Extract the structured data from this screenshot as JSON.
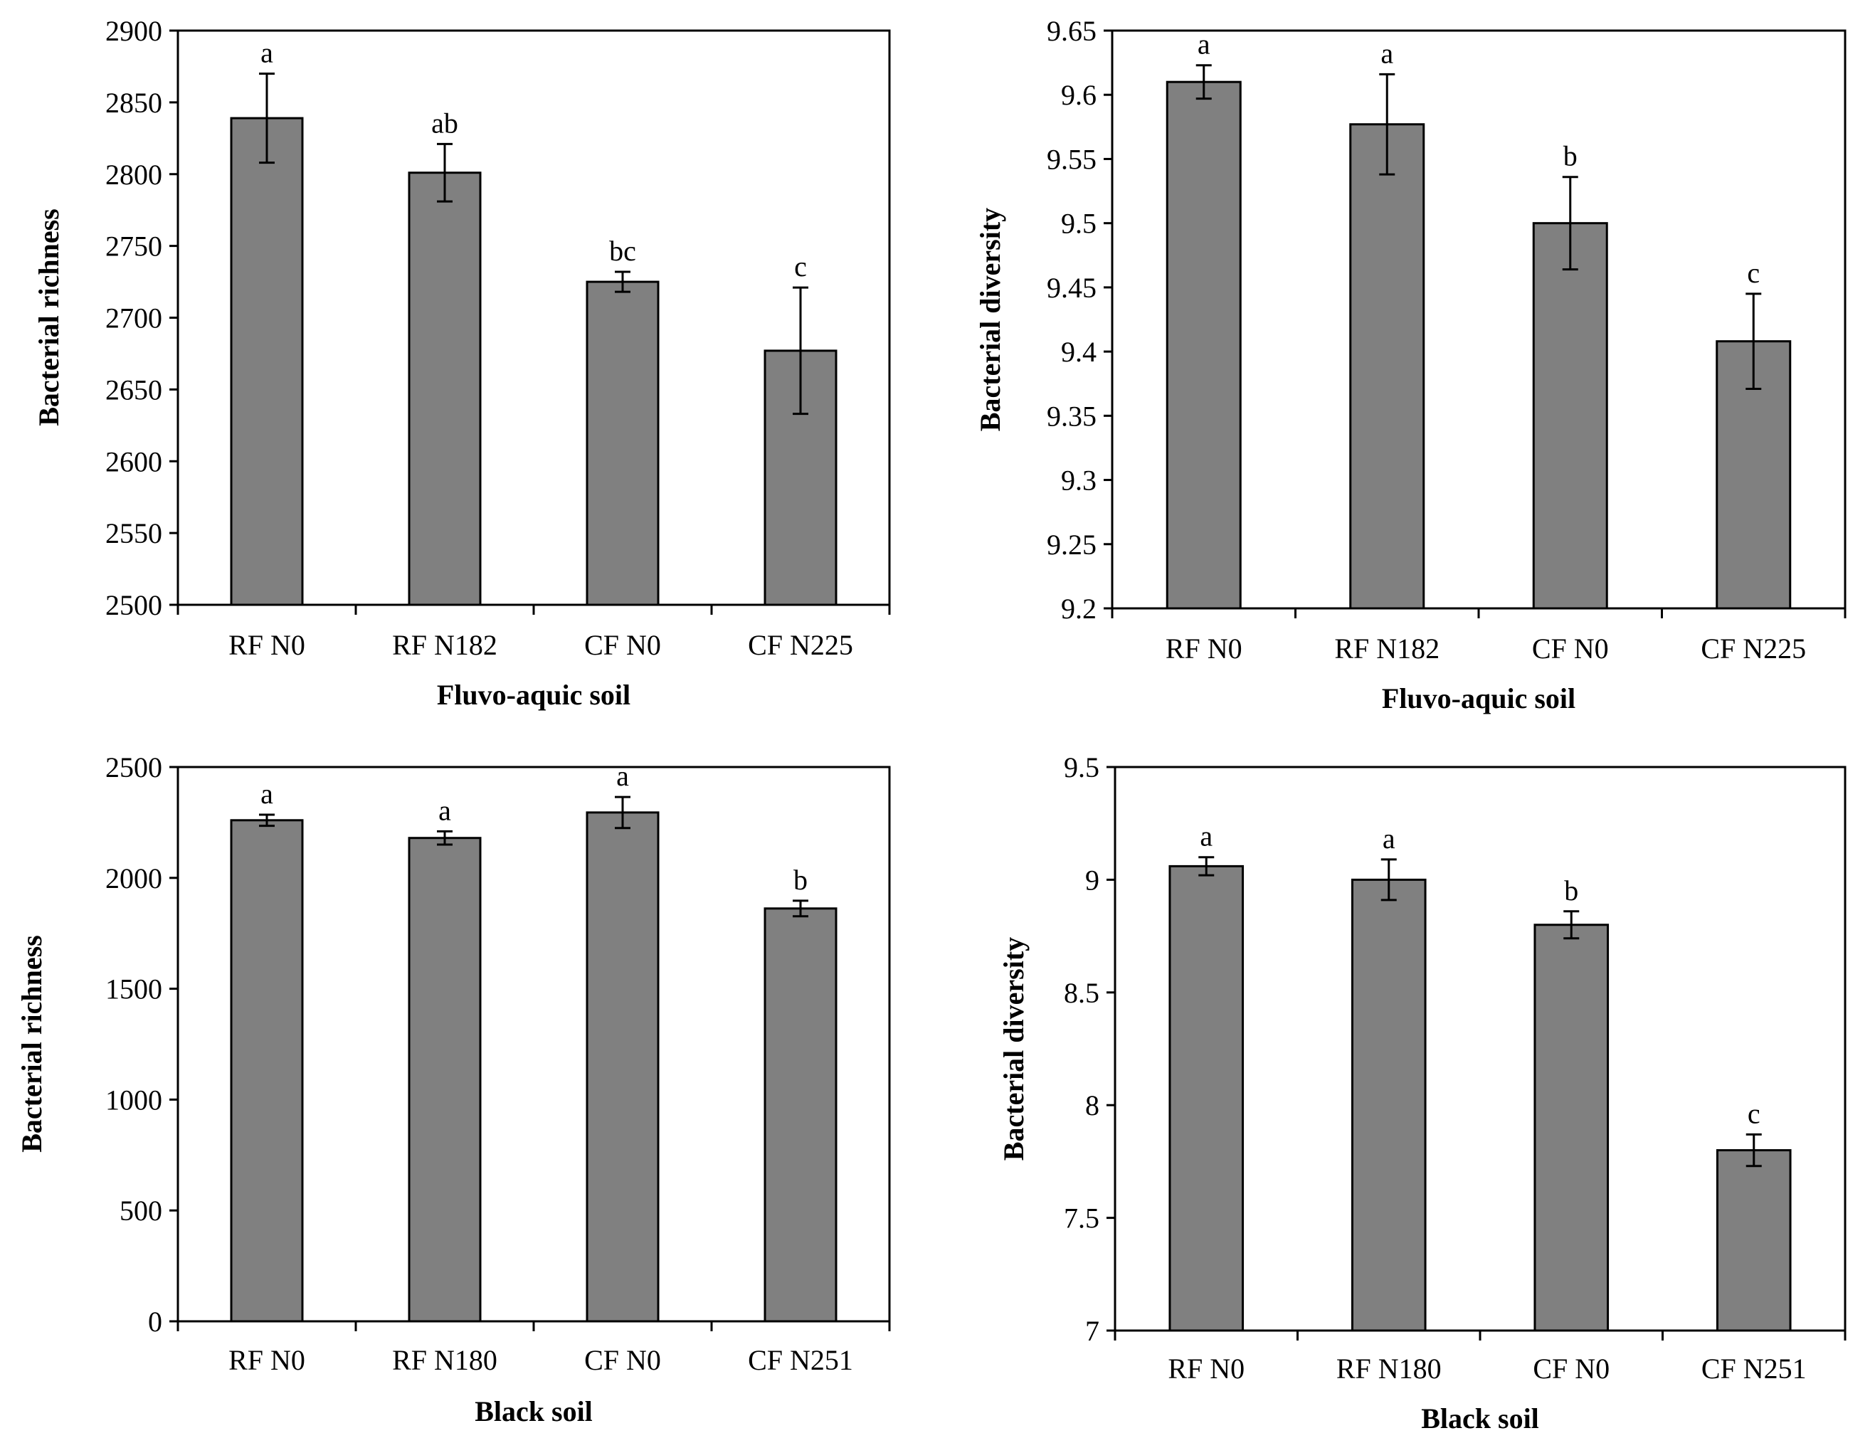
{
  "chart_data": [
    {
      "type": "bar",
      "categories": [
        "RF N0",
        "RF N182",
        "CF N0",
        "CF N225"
      ],
      "values": [
        2839,
        2801,
        2725,
        2677
      ],
      "errors": [
        31,
        20,
        7,
        44
      ],
      "significance": [
        "a",
        "ab",
        "bc",
        "c"
      ],
      "xlabel": "Fluvo-aquic soil",
      "ylabel": "Bacterial richness",
      "ylim": [
        2500,
        2900
      ],
      "yticks": [
        "2500",
        "2550",
        "2600",
        "2650",
        "2700",
        "2750",
        "2800",
        "2850",
        "2900"
      ],
      "bar_color": "#808080",
      "grid": false
    },
    {
      "type": "bar",
      "categories": [
        "RF N0",
        "RF N182",
        "CF N0",
        "CF N225"
      ],
      "values": [
        9.61,
        9.577,
        9.5,
        9.408
      ],
      "errors": [
        0.013,
        0.039,
        0.036,
        0.037
      ],
      "significance": [
        "a",
        "a",
        "b",
        "c"
      ],
      "xlabel": "Fluvo-aquic soil",
      "ylabel": "Bacterial diversity",
      "ylim": [
        9.2,
        9.65
      ],
      "yticks": [
        "9.2",
        "9.25",
        "9.3",
        "9.35",
        "9.4",
        "9.45",
        "9.5",
        "9.55",
        "9.6",
        "9.65"
      ],
      "bar_color": "#808080",
      "grid": false
    },
    {
      "type": "bar",
      "categories": [
        "RF N0",
        "RF N180",
        "CF N0",
        "CF N251"
      ],
      "values": [
        2260,
        2180,
        2295,
        1862
      ],
      "errors": [
        25,
        30,
        70,
        35
      ],
      "significance": [
        "a",
        "a",
        "a",
        "b"
      ],
      "xlabel": "Black soil",
      "ylabel": "Bacterial richness",
      "ylim": [
        0,
        2500
      ],
      "yticks": [
        "0",
        "500",
        "1000",
        "1500",
        "2000",
        "2500"
      ],
      "bar_color": "#808080",
      "grid": false
    },
    {
      "type": "bar",
      "categories": [
        "RF N0",
        "RF N180",
        "CF N0",
        "CF N251"
      ],
      "values": [
        9.06,
        9.0,
        8.8,
        7.8
      ],
      "errors": [
        0.04,
        0.09,
        0.06,
        0.07
      ],
      "significance": [
        "a",
        "a",
        "b",
        "c"
      ],
      "xlabel": "Black soil",
      "ylabel": "Bacterial diversity",
      "ylim": [
        7,
        9.5
      ],
      "yticks": [
        "7",
        "7.5",
        "8",
        "8.5",
        "9",
        "9.5"
      ],
      "bar_color": "#808080",
      "grid": false
    }
  ]
}
